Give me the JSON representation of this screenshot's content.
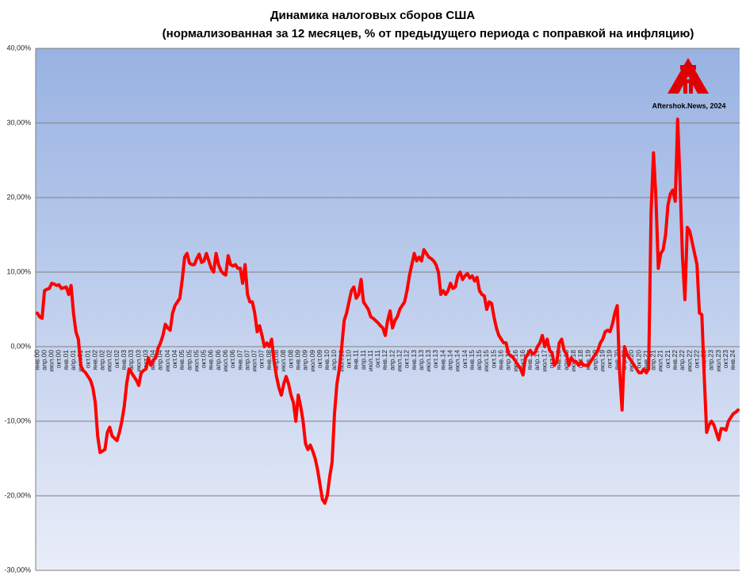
{
  "chart_data": {
    "type": "line",
    "title": "Динамика налоговых сборов США",
    "subtitle": "(нормализованная за 12 месяцев, % от предыдущего периода с поправкой на инфляцию)",
    "watermark": "Aftershok.News, 2024",
    "color": "#ff0000",
    "grid": true,
    "ylim": [
      -30,
      40
    ],
    "yticks": [
      {
        "value": -30,
        "label": "-30,00%"
      },
      {
        "value": -20,
        "label": "-20,00%"
      },
      {
        "value": -10,
        "label": "-10,00%"
      },
      {
        "value": 0,
        "label": "0,00%"
      },
      {
        "value": 10,
        "label": "10,00%"
      },
      {
        "value": 20,
        "label": "20,00%"
      },
      {
        "value": 30,
        "label": "30,00%"
      },
      {
        "value": 40,
        "label": "40,00%"
      }
    ],
    "categories": [
      "янв.00",
      null,
      null,
      "апр.00",
      null,
      null,
      "июл.00",
      null,
      null,
      "окт.00",
      null,
      null,
      "янв.01",
      null,
      null,
      "апр.01",
      null,
      null,
      "июл.01",
      null,
      null,
      "окт.01",
      null,
      null,
      "янв.02",
      null,
      null,
      "апр.02",
      null,
      null,
      "июл.02",
      null,
      null,
      "окт.02",
      null,
      null,
      "янв.03",
      null,
      null,
      "апр.03",
      null,
      null,
      "июл.03",
      null,
      null,
      "окт.03",
      null,
      null,
      "янв.04",
      null,
      null,
      "апр.04",
      null,
      null,
      "июл.04",
      null,
      null,
      "окт.04",
      null,
      null,
      "янв.05",
      null,
      null,
      "апр.05",
      null,
      null,
      "июл.05",
      null,
      null,
      "окт.05",
      null,
      null,
      "янв.06",
      null,
      null,
      "апр.06",
      null,
      null,
      "июл.06",
      null,
      null,
      "окт.06",
      null,
      null,
      "янв.07",
      null,
      null,
      "апр.07",
      null,
      null,
      "июл.07",
      null,
      null,
      "окт.07",
      null,
      null,
      "янв.08",
      null,
      null,
      "апр.08",
      null,
      null,
      "июл.08",
      null,
      null,
      "окт.08",
      null,
      null,
      "янв.09",
      null,
      null,
      "апр.09",
      null,
      null,
      "июл.09",
      null,
      null,
      "окт.09",
      null,
      null,
      "янв.10",
      null,
      null,
      "апр.10",
      null,
      null,
      "июл.10",
      null,
      null,
      "окт.10",
      null,
      null,
      "янв.11",
      null,
      null,
      "апр.11",
      null,
      null,
      "июл.11",
      null,
      null,
      "окт.11",
      null,
      null,
      "янв.12",
      null,
      null,
      "апр.12",
      null,
      null,
      "июл.12",
      null,
      null,
      "окт.12",
      null,
      null,
      "янв.13",
      null,
      null,
      "апр.13",
      null,
      null,
      "июл.13",
      null,
      null,
      "окт.13",
      null,
      null,
      "янв.14",
      null,
      null,
      "апр.14",
      null,
      null,
      "июл.14",
      null,
      null,
      "окт.14",
      null,
      null,
      "янв.15",
      null,
      null,
      "апр.15",
      null,
      null,
      "июл.15",
      null,
      null,
      "окт.15",
      null,
      null,
      "янв.16",
      null,
      null,
      "апр.16",
      null,
      null,
      "июл.16",
      null,
      null,
      "окт.16",
      null,
      null,
      "янв.17",
      null,
      null,
      "апр.17",
      null,
      null,
      "июл.17",
      null,
      null,
      "окт.17",
      null,
      null,
      "янв.18",
      null,
      null,
      "апр.18",
      null,
      null,
      "июл.18",
      null,
      null,
      "окт.18",
      null,
      null,
      "янв.19",
      null,
      null,
      "апр.19",
      null,
      null,
      "июл.19",
      null,
      null,
      "окт.19",
      null,
      null,
      "янв.20",
      null,
      null,
      "апр.20",
      null,
      null,
      "июл.20",
      null,
      null,
      "окт.20",
      null,
      null,
      "янв.21",
      null,
      null,
      "апр.21",
      null,
      null,
      "июл.21",
      null,
      null,
      "окт.21",
      null,
      null,
      "янв.22",
      null,
      null,
      "апр.22",
      null,
      null,
      "июл.22",
      null,
      null,
      "окт.22",
      null,
      null,
      "янв.23",
      null,
      null,
      "апр.23",
      null,
      null,
      "июл.23",
      null,
      null,
      "окт.23",
      null,
      null,
      "янв.24",
      null,
      null
    ],
    "values": [
      4.5,
      4.0,
      3.8,
      7.5,
      7.7,
      7.8,
      8.5,
      8.4,
      8.2,
      8.3,
      7.8,
      7.9,
      8.0,
      7.0,
      8.2,
      4.5,
      2.0,
      1.0,
      -2.5,
      -3.2,
      -3.5,
      -4.0,
      -4.5,
      -5.5,
      -7.5,
      -12.0,
      -14.2,
      -14.0,
      -13.8,
      -11.5,
      -10.8,
      -12.0,
      -12.3,
      -12.6,
      -11.5,
      -10.0,
      -8.0,
      -5.0,
      -3.0,
      -3.5,
      -4.0,
      -4.5,
      -5.2,
      -3.5,
      -3.2,
      -3.0,
      -1.5,
      -2.5,
      -1.8,
      -1.5,
      -0.2,
      0.5,
      1.5,
      3.0,
      2.5,
      2.2,
      4.5,
      5.5,
      6.0,
      6.5,
      9.0,
      12.0,
      12.5,
      11.2,
      11.0,
      11.0,
      11.8,
      12.4,
      11.3,
      11.5,
      12.5,
      11.5,
      10.5,
      10.0,
      12.5,
      11.0,
      10.2,
      9.8,
      9.6,
      12.2,
      11.0,
      10.8,
      11.0,
      10.5,
      10.5,
      8.5,
      11.0,
      7.0,
      6.0,
      6.0,
      4.5,
      2.0,
      2.8,
      1.5,
      0.0,
      0.5,
      0.0,
      1.0,
      -2.0,
      -4.0,
      -5.5,
      -6.5,
      -5.0,
      -4.0,
      -5.0,
      -6.5,
      -7.5,
      -10.0,
      -6.5,
      -8.0,
      -10.0,
      -13.0,
      -13.8,
      -13.2,
      -14.0,
      -15.0,
      -16.5,
      -18.5,
      -20.5,
      -21.0,
      -20.0,
      -17.5,
      -15.5,
      -9.0,
      -5.0,
      -3.0,
      0.0,
      3.5,
      4.5,
      6.0,
      7.5,
      8.0,
      6.5,
      7.0,
      9.0,
      6.0,
      5.5,
      5.0,
      4.0,
      3.8,
      3.5,
      3.2,
      2.8,
      2.5,
      1.5,
      3.5,
      4.8,
      2.5,
      3.5,
      4.0,
      5.0,
      5.5,
      6.0,
      7.5,
      9.5,
      11.0,
      12.5,
      11.5,
      12.0,
      11.5,
      13.0,
      12.5,
      12.0,
      11.8,
      11.5,
      11.0,
      10.0,
      7.0,
      7.5,
      7.0,
      7.5,
      8.5,
      7.8,
      8.0,
      9.5,
      10.0,
      9.0,
      9.5,
      9.8,
      9.2,
      9.5,
      8.8,
      9.3,
      7.5,
      7.0,
      6.8,
      5.0,
      6.0,
      5.8,
      4.0,
      2.5,
      1.5,
      1.0,
      0.5,
      0.5,
      -1.0,
      -1.2,
      -1.5,
      -2.0,
      -2.5,
      -3.0,
      -3.8,
      -1.5,
      -1.0,
      -0.5,
      -1.0,
      -0.8,
      0.0,
      0.5,
      1.5,
      0.0,
      1.0,
      -0.5,
      -0.8,
      -2.5,
      -2.0,
      0.5,
      1.0,
      -0.5,
      -1.0,
      -2.5,
      -1.5,
      -2.0,
      -2.0,
      -2.5,
      -2.0,
      -2.5,
      -2.5,
      -2.5,
      -2.0,
      -1.5,
      -1.0,
      -0.5,
      0.5,
      1.0,
      2.0,
      2.2,
      2.0,
      3.0,
      4.5,
      5.5,
      -3.5,
      -8.5,
      0.0,
      -1.0,
      -1.5,
      -2.0,
      -2.5,
      -3.0,
      -3.5,
      -3.5,
      -3.0,
      -3.5,
      -3.0,
      18.0,
      26.0,
      20.0,
      10.5,
      12.5,
      13.0,
      15.0,
      19.0,
      20.5,
      21.0,
      19.5,
      30.5,
      22.0,
      12.0,
      6.3,
      16.0,
      15.5,
      14.0,
      12.5,
      11.0,
      4.5,
      4.3,
      -4.0,
      -11.5,
      -10.5,
      -10.0,
      -10.5,
      -11.5,
      -12.5,
      -11.0,
      -11.0,
      -11.2,
      -10.0,
      -9.5,
      -9.0,
      -8.8,
      -8.5
    ]
  }
}
